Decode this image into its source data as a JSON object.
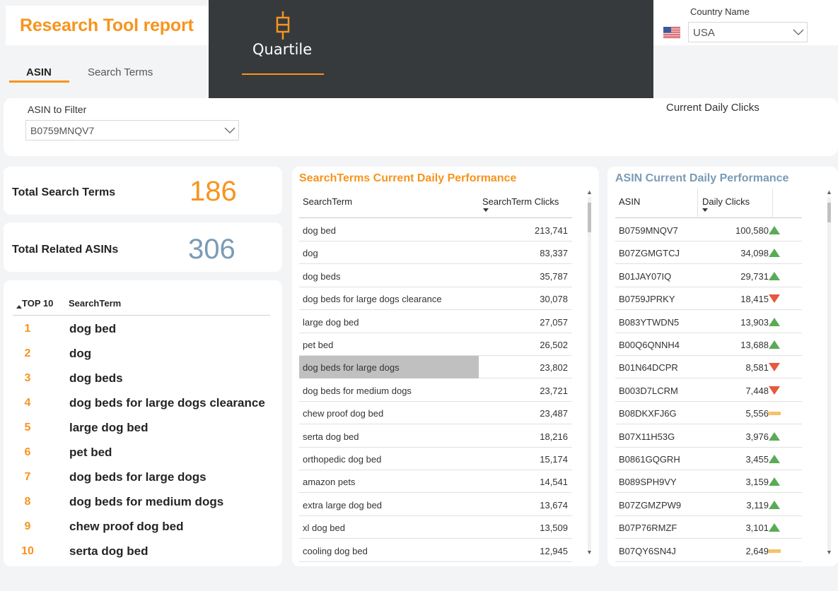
{
  "header": {
    "title": "Research Tool report",
    "logo_text": "Quartile",
    "country_label": "Country Name",
    "country_value": "USA"
  },
  "tabs": [
    {
      "label": "ASIN",
      "active": true
    },
    {
      "label": "Search Terms",
      "active": false
    }
  ],
  "filter": {
    "label": "ASIN to Filter",
    "value": "B0759MNQV7",
    "current_clicks_label": "Current Daily Clicks"
  },
  "kpis": {
    "total_search_terms": {
      "label": "Total Search Terms",
      "value": "186",
      "color": "#f7941d"
    },
    "total_related_asins": {
      "label": "Total Related ASINs",
      "value": "306",
      "color": "#7a9bb5"
    }
  },
  "top10": {
    "col_rank": "TOP 10",
    "col_term": "SearchTerm",
    "rows": [
      {
        "rank": "1",
        "term": "dog bed"
      },
      {
        "rank": "2",
        "term": "dog"
      },
      {
        "rank": "3",
        "term": "dog beds"
      },
      {
        "rank": "4",
        "term": "dog beds for large dogs clearance"
      },
      {
        "rank": "5",
        "term": "large dog bed"
      },
      {
        "rank": "6",
        "term": "pet bed"
      },
      {
        "rank": "7",
        "term": "dog beds for large dogs"
      },
      {
        "rank": "8",
        "term": "dog beds for medium dogs"
      },
      {
        "rank": "9",
        "term": "chew proof dog bed"
      },
      {
        "rank": "10",
        "term": "serta dog bed"
      }
    ]
  },
  "searchterm_table": {
    "title": "SearchTerms Current Daily Performance",
    "title_color": "#f7941d",
    "col_term": "SearchTerm",
    "col_clicks": "SearchTerm Clicks",
    "rows": [
      {
        "term": "dog bed",
        "clicks": "213,741"
      },
      {
        "term": "dog",
        "clicks": "83,337"
      },
      {
        "term": "dog beds",
        "clicks": "35,787"
      },
      {
        "term": "dog beds for large dogs clearance",
        "clicks": "30,078"
      },
      {
        "term": "large dog bed",
        "clicks": "27,057"
      },
      {
        "term": "pet bed",
        "clicks": "26,502"
      },
      {
        "term": "dog beds for large dogs",
        "clicks": "23,802",
        "highlight": true
      },
      {
        "term": "dog beds for medium dogs",
        "clicks": "23,721"
      },
      {
        "term": "chew proof dog bed",
        "clicks": "23,487"
      },
      {
        "term": "serta dog bed",
        "clicks": "18,216"
      },
      {
        "term": "orthopedic dog bed",
        "clicks": "15,174"
      },
      {
        "term": "amazon pets",
        "clicks": "14,541"
      },
      {
        "term": "extra large dog bed",
        "clicks": "13,674"
      },
      {
        "term": "xl dog bed",
        "clicks": "13,509"
      },
      {
        "term": "cooling dog bed",
        "clicks": "12,945"
      }
    ]
  },
  "asin_table": {
    "title": "ASIN Current Daily Performance",
    "title_color": "#7a9bb5",
    "col_asin": "ASIN",
    "col_clicks": "Daily Clicks",
    "rows": [
      {
        "asin": "B0759MNQV7",
        "clicks": "100,580",
        "trend": "up"
      },
      {
        "asin": "B07ZGMGTCJ",
        "clicks": "34,098",
        "trend": "up"
      },
      {
        "asin": "B01JAY07IQ",
        "clicks": "29,731",
        "trend": "up"
      },
      {
        "asin": "B0759JPRKY",
        "clicks": "18,415",
        "trend": "down"
      },
      {
        "asin": "B083YTWDN5",
        "clicks": "13,903",
        "trend": "up"
      },
      {
        "asin": "B00Q6QNNH4",
        "clicks": "13,688",
        "trend": "up"
      },
      {
        "asin": "B01N64DCPR",
        "clicks": "8,581",
        "trend": "down"
      },
      {
        "asin": "B003D7LCRM",
        "clicks": "7,448",
        "trend": "down"
      },
      {
        "asin": "B08DKXFJ6G",
        "clicks": "5,556",
        "trend": "flat"
      },
      {
        "asin": "B07X11H53G",
        "clicks": "3,976",
        "trend": "up"
      },
      {
        "asin": "B0861GQGRH",
        "clicks": "3,455",
        "trend": "up"
      },
      {
        "asin": "B089SPH9VY",
        "clicks": "3,159",
        "trend": "up"
      },
      {
        "asin": "B07ZGMZPW9",
        "clicks": "3,119",
        "trend": "up"
      },
      {
        "asin": "B07P76RMZF",
        "clicks": "3,101",
        "trend": "up"
      },
      {
        "asin": "B07QY6SN4J",
        "clicks": "2,649",
        "trend": "flat"
      }
    ]
  },
  "colors": {
    "accent": "#f7941d",
    "up": "#5aab55",
    "down": "#e8573f",
    "flat": "#f5c26b",
    "highlight": "#c0c0c0"
  }
}
